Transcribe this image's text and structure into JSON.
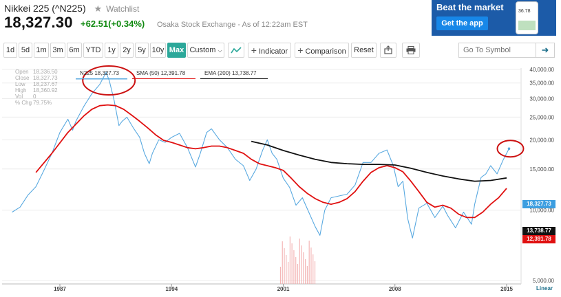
{
  "header": {
    "title": "Nikkei 225 (^N225)",
    "watchlist_label": "Watchlist",
    "price": "18,327.30",
    "change": "+62.51(+0.34%)",
    "exchange": "Osaka Stock Exchange - As of 12:22am EST"
  },
  "ad": {
    "title": "Beat the market",
    "button": "Get the app",
    "phone_value": "36.78"
  },
  "toolbar": {
    "ranges": [
      "1d",
      "5d",
      "1m",
      "3m",
      "6m",
      "YTD",
      "1y",
      "2y",
      "5y",
      "10y",
      "Max"
    ],
    "active_range": "Max",
    "custom": "Custom",
    "indicator": "Indicator",
    "comparison": "Comparison",
    "reset": "Reset",
    "symbol_placeholder": "Go To Symbol"
  },
  "ohlc_panel": [
    {
      "k": "Open",
      "v": "18,336.50"
    },
    {
      "k": "Close",
      "v": "18,327.73"
    },
    {
      "k": "Low",
      "v": "18,237.67"
    },
    {
      "k": "High",
      "v": "18,360.92"
    },
    {
      "k": "Vol",
      "v": "0"
    },
    {
      "k": "% Chg",
      "v": "79.75%"
    }
  ],
  "legend": {
    "n225": "N225 18,327.73",
    "sma": "SMA (50) 12,391.78",
    "ema": "EMA (200) 13,738.77"
  },
  "right_labels": {
    "n225": "18,327.73",
    "ema": "13,738.77",
    "sma": "12,391.78"
  },
  "scale_label": "Linear",
  "colors": {
    "n225": "#59a9e0",
    "sma": "#e01010",
    "ema": "#111111",
    "ema_label_bg": "#111111",
    "annotation": "#cc1111",
    "active": "#2ba89a"
  },
  "chart_data": {
    "type": "line",
    "title": "",
    "xlabel": "",
    "ylabel": "",
    "y_scale": "log",
    "ylim": [
      5000,
      40000
    ],
    "xlim": [
      1984,
      2015.3
    ],
    "y_ticks": [
      5000,
      10000,
      15000,
      20000,
      25000,
      30000,
      35000,
      40000
    ],
    "y_tick_labels": [
      "5,000.00",
      "10,000.00",
      "15,000.00",
      "20,000.00",
      "25,000.00",
      "30,000.00",
      "35,000.00",
      "40,000.00"
    ],
    "x_ticks": [
      1987,
      1994,
      2001,
      2008,
      2015
    ],
    "x_tick_labels": [
      "1987",
      "1994",
      "2001",
      "2008",
      "2015"
    ],
    "grid": "horizontal",
    "series": [
      {
        "name": "N225",
        "x": [
          1984.0,
          1984.5,
          1985.0,
          1985.5,
          1986.0,
          1986.5,
          1987.0,
          1987.5,
          1987.8,
          1988.0,
          1988.5,
          1989.0,
          1989.5,
          1989.9,
          1990.1,
          1990.4,
          1990.7,
          1990.9,
          1991.2,
          1991.6,
          1992.0,
          1992.3,
          1992.6,
          1992.8,
          1993.2,
          1993.6,
          1994.0,
          1994.5,
          1995.0,
          1995.5,
          1995.8,
          1996.2,
          1996.5,
          1997.0,
          1997.5,
          1998.0,
          1998.5,
          1998.9,
          1999.3,
          1999.7,
          2000.0,
          2000.3,
          2000.6,
          2001.0,
          2001.4,
          2001.8,
          2002.2,
          2002.6,
          2003.0,
          2003.3,
          2003.6,
          2004.0,
          2004.5,
          2005.0,
          2005.5,
          2006.0,
          2006.5,
          2007.0,
          2007.5,
          2007.9,
          2008.2,
          2008.5,
          2008.8,
          2009.1,
          2009.5,
          2010.0,
          2010.5,
          2011.0,
          2011.3,
          2011.8,
          2012.3,
          2012.8,
          2013.0,
          2013.4,
          2013.7,
          2014.0,
          2014.4,
          2014.8,
          2015.0,
          2015.15
        ],
        "values": [
          9800,
          10300,
          11600,
          12600,
          14800,
          17500,
          21500,
          24500,
          22000,
          24000,
          27800,
          31500,
          34500,
          38900,
          35700,
          29500,
          23000,
          24000,
          25000,
          22500,
          20500,
          17500,
          15800,
          17500,
          20000,
          19500,
          20500,
          21300,
          18500,
          15300,
          17500,
          21500,
          22300,
          20000,
          18500,
          16500,
          15500,
          13400,
          15000,
          18000,
          20000,
          17500,
          16500,
          13700,
          12500,
          10500,
          11300,
          9800,
          8500,
          7800,
          10000,
          11300,
          11500,
          11700,
          12800,
          16000,
          16000,
          17500,
          18100,
          15500,
          12600,
          13300,
          9200,
          7600,
          10200,
          10700,
          9300,
          10400,
          9500,
          8400,
          9800,
          8700,
          10600,
          13800,
          14300,
          15500,
          14300,
          16500,
          17500,
          18327.73
        ]
      },
      {
        "name": "SMA (50)",
        "x": [
          1985.5,
          1986.5,
          1987.5,
          1988.5,
          1989.0,
          1989.5,
          1990.0,
          1990.5,
          1991.0,
          1991.5,
          1992.0,
          1992.5,
          1993.0,
          1993.5,
          1994.0,
          1994.5,
          1995.0,
          1995.5,
          1996.0,
          1996.5,
          1997.0,
          1997.5,
          1998.0,
          1998.5,
          1999.0,
          1999.5,
          2000.0,
          2000.5,
          2001.0,
          2001.5,
          2002.0,
          2002.5,
          2003.0,
          2003.5,
          2004.0,
          2004.5,
          2005.0,
          2005.5,
          2006.0,
          2006.5,
          2007.0,
          2007.5,
          2008.0,
          2008.5,
          2009.0,
          2009.5,
          2010.0,
          2010.5,
          2011.0,
          2011.5,
          2012.0,
          2012.5,
          2013.0,
          2013.5,
          2014.0,
          2014.5,
          2015.0
        ],
        "values": [
          14500,
          17500,
          21500,
          25300,
          27000,
          28000,
          28200,
          28000,
          27000,
          25500,
          24000,
          22500,
          21000,
          19900,
          19500,
          19000,
          18500,
          18300,
          18500,
          18800,
          18800,
          18500,
          18000,
          17500,
          16500,
          15800,
          15500,
          15200,
          14800,
          13700,
          12600,
          11800,
          11200,
          10800,
          10600,
          10800,
          11200,
          12000,
          13300,
          14500,
          15200,
          15500,
          15200,
          14600,
          13300,
          12000,
          10800,
          10300,
          10500,
          10200,
          9600,
          9300,
          9300,
          9800,
          10600,
          11300,
          12391.78
        ]
      },
      {
        "name": "EMA (200)",
        "x": [
          1999.0,
          2000.0,
          2001.0,
          2002.0,
          2003.0,
          2004.0,
          2005.0,
          2006.0,
          2007.0,
          2008.0,
          2009.0,
          2010.0,
          2011.0,
          2012.0,
          2013.0,
          2014.0,
          2015.0
        ],
        "values": [
          19700,
          19000,
          18000,
          17200,
          16500,
          16000,
          15800,
          15700,
          15700,
          15600,
          15100,
          14500,
          14000,
          13600,
          13300,
          13400,
          13738.77
        ]
      }
    ],
    "volume_spike": {
      "x": [
        2000.8,
        2003.0
      ]
    }
  }
}
